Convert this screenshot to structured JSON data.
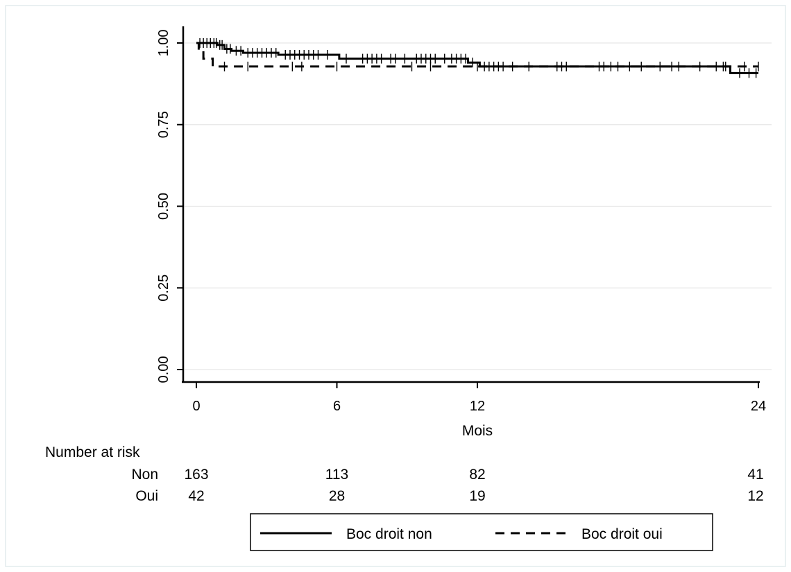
{
  "chart_data": {
    "type": "line",
    "title": "",
    "xlabel": "Mois",
    "ylabel": "",
    "xlim": [
      0,
      24
    ],
    "ylim": [
      0,
      1
    ],
    "x_ticks": [
      0,
      6,
      12,
      24
    ],
    "y_ticks": [
      0.0,
      0.25,
      0.5,
      0.75,
      1.0
    ],
    "y_tick_labels": [
      "0.00",
      "0.25",
      "0.50",
      "0.75",
      "1.00"
    ],
    "grid": true,
    "legend_position": "bottom",
    "series": [
      {
        "name": "Boc droit non",
        "style": "solid",
        "color": "#000000",
        "steps": [
          [
            0,
            1.0
          ],
          [
            0.9,
            0.994
          ],
          [
            1.2,
            0.982
          ],
          [
            1.5,
            0.976
          ],
          [
            2.0,
            0.97
          ],
          [
            3.5,
            0.964
          ],
          [
            6.1,
            0.952
          ],
          [
            11.6,
            0.94
          ],
          [
            12.1,
            0.928
          ],
          [
            22.8,
            0.908
          ],
          [
            24,
            0.908
          ]
        ],
        "censor_x": [
          0.15,
          0.3,
          0.45,
          0.6,
          0.75,
          0.85,
          1.0,
          1.1,
          1.3,
          1.45,
          1.7,
          1.9,
          2.2,
          2.4,
          2.6,
          2.8,
          3.0,
          3.2,
          3.4,
          3.8,
          4.0,
          4.2,
          4.4,
          4.6,
          4.8,
          5.0,
          5.2,
          5.6,
          6.4,
          7.1,
          7.3,
          7.5,
          7.7,
          7.9,
          8.3,
          8.5,
          8.9,
          9.4,
          9.6,
          9.8,
          10.0,
          10.2,
          10.6,
          10.9,
          11.1,
          11.3,
          11.5,
          11.8,
          12.3,
          12.5,
          12.7,
          12.9,
          13.1,
          13.5,
          14.2,
          15.4,
          15.6,
          15.8,
          17.2,
          17.4,
          17.7,
          18.0,
          18.5,
          19.0,
          19.8,
          20.3,
          20.6,
          21.5,
          22.2,
          22.5,
          23.2,
          23.6,
          23.9
        ]
      },
      {
        "name": "Boc droit oui",
        "style": "dashed",
        "color": "#000000",
        "steps": [
          [
            0,
            1.0
          ],
          [
            0.1,
            0.976
          ],
          [
            0.3,
            0.952
          ],
          [
            0.7,
            0.928
          ],
          [
            24,
            0.928
          ]
        ],
        "censor_x": [
          1.2,
          2.2,
          4.1,
          4.5,
          6.0,
          9.2,
          10.0,
          12.0,
          22.6,
          23.4,
          24.0
        ]
      }
    ],
    "number_at_risk": {
      "title": "Number at risk",
      "rows": [
        {
          "label": "Non",
          "values": [
            "163",
            "113",
            "82",
            "41"
          ]
        },
        {
          "label": "Oui",
          "values": [
            "42",
            "28",
            "19",
            "12"
          ]
        }
      ]
    }
  }
}
